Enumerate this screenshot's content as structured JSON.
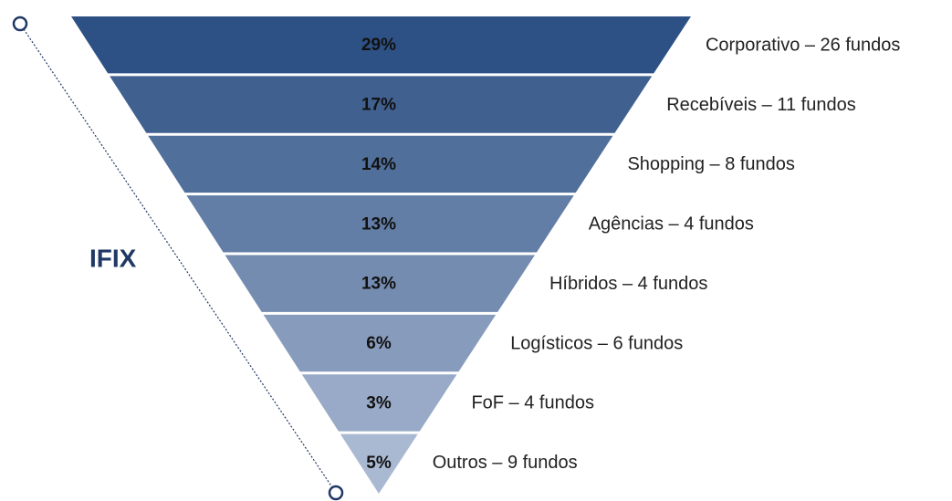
{
  "title": "IFIX",
  "levels": [
    {
      "value_label": "29%",
      "label": "Corporativo – 26 fundos"
    },
    {
      "value_label": "17%",
      "label": "Recebíveis – 11 fundos"
    },
    {
      "value_label": "14%",
      "label": "Shopping – 8 fundos"
    },
    {
      "value_label": "13%",
      "label": "Agências – 4 fundos"
    },
    {
      "value_label": "13%",
      "label": "Híbridos – 4 fundos"
    },
    {
      "value_label": "6%",
      "label": "Logísticos – 6 fundos"
    },
    {
      "value_label": "3%",
      "label": "FoF – 4 fundos"
    },
    {
      "value_label": "5%",
      "label": "Outros – 9 fundos"
    }
  ]
}
